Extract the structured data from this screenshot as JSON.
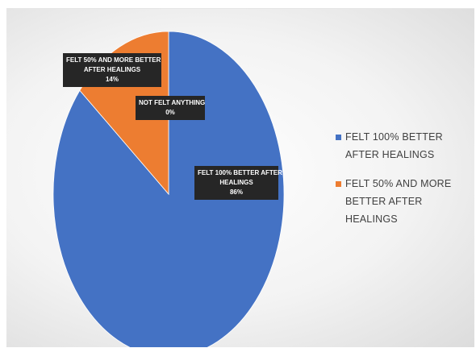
{
  "chart_data": {
    "type": "pie",
    "title": "",
    "slices": [
      {
        "name": "FELT 100% BETTER AFTER HEALINGS",
        "value": 86,
        "pct_label": "86%",
        "color": "#4472C4"
      },
      {
        "name": "FELT 50% AND MORE BETTER AFTER HEALINGS",
        "value": 14,
        "pct_label": "14%",
        "color": "#ED7D31"
      },
      {
        "name": "NOT FELT ANYTHING",
        "value": 0,
        "pct_label": "0%",
        "color": "#A5A5A5"
      }
    ],
    "data_labels": [
      {
        "line1": "FELT 100% BETTER AFTER",
        "line2": "HEALINGS",
        "line3": "86%"
      },
      {
        "line1": "FELT 50% AND MORE BETTER",
        "line2": "AFTER HEALINGS",
        "line3": "14%"
      },
      {
        "line1": "NOT FELT ANYTHING",
        "line2": "0%"
      }
    ],
    "legend": {
      "position": "right",
      "items": [
        {
          "label": "FELT 100% BETTER AFTER HEALINGS",
          "color": "#4472C4"
        },
        {
          "label": "FELT 50% AND MORE BETTER AFTER HEALINGS",
          "color": "#ED7D31"
        }
      ]
    }
  }
}
